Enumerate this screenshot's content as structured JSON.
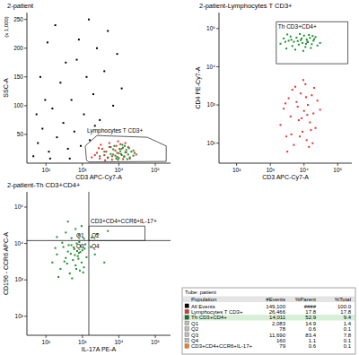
{
  "chart_data": [
    {
      "type": "scatter",
      "title": "2-patient",
      "x_label": "CD3 APC-Cy7-A",
      "y_label": "SSC-A",
      "annotations": [
        "(x 1,000)"
      ],
      "log": "x",
      "xlim": [
        30,
        262144
      ],
      "ylim": [
        0,
        262
      ],
      "xticks": [
        {
          "value": 100,
          "label": "10²"
        },
        {
          "value": 1000,
          "label": "10³"
        },
        {
          "value": 10000,
          "label": "10⁴"
        },
        {
          "value": 100000,
          "label": "10⁵"
        }
      ],
      "yticks": [
        50,
        100,
        150,
        200,
        250
      ],
      "series": [
        {
          "color": "#000000",
          "x": [
            45,
            60,
            80,
            120,
            150,
            200,
            250,
            300,
            400,
            500,
            600,
            700,
            900,
            1100,
            1300,
            1600,
            2000,
            2500,
            3000,
            4000,
            5000,
            7000,
            9000,
            12000,
            70,
            110,
            180,
            350,
            800,
            1500,
            55,
            95,
            2200,
            130,
            450
          ],
          "values": [
            12,
            35,
            60,
            20,
            95,
            45,
            140,
            70,
            25,
            110,
            55,
            180,
            30,
            85,
            150,
            40,
            120,
            200,
            75,
            160,
            230,
            100,
            190,
            130,
            150,
            210,
            240,
            175,
            215,
            250,
            85,
            110,
            65,
            8,
            8
          ]
        },
        {
          "color": "#e8332a",
          "x": [
            1800,
            2500,
            3000,
            3500,
            4000,
            4500,
            5000,
            6000,
            7000,
            8000,
            9000,
            10000,
            12000,
            14000,
            16000,
            20000,
            25000,
            3200,
            5500,
            11000,
            2200,
            6500,
            8500,
            13000,
            18000,
            30000,
            4200,
            9500,
            2800,
            15000
          ],
          "values": [
            10,
            18,
            8,
            25,
            14,
            20,
            9,
            28,
            15,
            22,
            11,
            17,
            25,
            12,
            19,
            8,
            22,
            32,
            35,
            33,
            14,
            6,
            30,
            7,
            28,
            15,
            5,
            38,
            26,
            35
          ]
        },
        {
          "color": "#1f8f2f",
          "x": [
            3000,
            4000,
            5000,
            6000,
            7000,
            8000,
            9000,
            10000,
            11000,
            12000,
            13000,
            14000,
            15000,
            16000,
            18000,
            20000,
            22000,
            25000,
            7500,
            9500,
            12500,
            17000,
            5500,
            10500,
            19000,
            27000,
            8500,
            14500,
            6500,
            11500
          ],
          "values": [
            12,
            20,
            10,
            16,
            24,
            13,
            18,
            9,
            21,
            14,
            27,
            11,
            19,
            23,
            15,
            10,
            20,
            13,
            30,
            6,
            32,
            7,
            28,
            25,
            26,
            18,
            8,
            30,
            12,
            16
          ]
        }
      ],
      "gates": [
        {
          "label": "Lymphocytes T CD3+",
          "points": [
            [
              1300,
              5
            ],
            [
              1200,
              30
            ],
            [
              2500,
              48
            ],
            [
              60000,
              45
            ],
            [
              200000,
              30
            ],
            [
              200000,
              3
            ],
            [
              1500,
              2
            ]
          ]
        }
      ]
    },
    {
      "type": "scatter",
      "title": "2-patient-Lymphocytes T CD3+",
      "x_label": "CD3 APC-Cy7-A",
      "y_label": "CD4 PE-Cy7-A",
      "log": true,
      "xlim": [
        30,
        262144
      ],
      "ylim": [
        30,
        262144
      ],
      "xticks": [
        {
          "value": 100,
          "label": "10²"
        },
        {
          "value": 1000,
          "label": "10³"
        },
        {
          "value": 10000,
          "label": "10⁴"
        },
        {
          "value": 100000,
          "label": "10⁵"
        }
      ],
      "yticks": [
        {
          "value": 100,
          "label": "10²"
        },
        {
          "value": 1000,
          "label": "10³"
        },
        {
          "value": 10000,
          "label": "10⁴"
        },
        {
          "value": 100000,
          "label": "10⁵"
        }
      ],
      "series": [
        {
          "color": "#e8332a",
          "x": [
            2000,
            2500,
            3000,
            3500,
            4000,
            4500,
            5000,
            6000,
            7000,
            8000,
            9000,
            10000,
            11000,
            12000,
            13000,
            15000,
            17000,
            19000,
            22000,
            25000,
            3200,
            5500,
            7500,
            9500,
            14000,
            6500,
            8500,
            11500,
            16000,
            20000,
            2800,
            4200,
            12500,
            18000,
            30000
          ],
          "values": [
            300,
            800,
            150,
            1500,
            500,
            2500,
            90,
            1200,
            400,
            2000,
            200,
            700,
            3500,
            120,
            1000,
            350,
            1800,
            600,
            250,
            1300,
            60,
            3000,
            150,
            4500,
            80,
            900,
            450,
            1600,
            220,
            2800,
            1100,
            170,
            550,
            100,
            750
          ]
        },
        {
          "color": "#1f8f2f",
          "x": [
            2000,
            2500,
            3000,
            3500,
            4000,
            4500,
            5000,
            6000,
            7000,
            8000,
            9000,
            10000,
            11000,
            12000,
            13000,
            15000,
            17000,
            19000,
            22000,
            25000,
            3200,
            5500,
            7500,
            9500,
            14000,
            6500,
            8500,
            11500,
            16000,
            20000,
            2800,
            4200,
            12500,
            18000,
            30000
          ],
          "values": [
            40000,
            55000,
            30000,
            48000,
            62000,
            35000,
            45000,
            58000,
            38000,
            50000,
            42000,
            65000,
            33000,
            52000,
            44000,
            57000,
            39000,
            48000,
            60000,
            36000,
            70000,
            28000,
            72000,
            26000,
            68000,
            47000,
            55000,
            40000,
            31000,
            53000,
            45000,
            51000,
            46000,
            64000,
            42000
          ]
        }
      ],
      "gates": [
        {
          "label": "Th CD3+CD4+",
          "points": [
            [
              1500,
              12000
            ],
            [
              1500,
              150000
            ],
            [
              200000,
              150000
            ],
            [
              200000,
              12000
            ]
          ]
        }
      ]
    },
    {
      "type": "scatter",
      "title": "2-patient-Th CD3+CD4+",
      "x_label": "IL-17A PE-A",
      "y_label": "CD196 - CCR6 APC-A",
      "log": true,
      "xlim": [
        30,
        262144
      ],
      "ylim": [
        30,
        262144
      ],
      "xticks": [
        {
          "value": 100,
          "label": "10²"
        },
        {
          "value": 1000,
          "label": "10³"
        },
        {
          "value": 10000,
          "label": "10⁴"
        },
        {
          "value": 100000,
          "label": "10⁵"
        }
      ],
      "yticks": [
        {
          "value": 100,
          "label": "10²"
        },
        {
          "value": 1000,
          "label": "10³"
        },
        {
          "value": 10000,
          "label": "10⁴"
        },
        {
          "value": 100000,
          "label": "10⁵"
        }
      ],
      "series": [
        {
          "color": "#1f8f2f",
          "x": [
            150,
            200,
            250,
            300,
            350,
            400,
            450,
            500,
            550,
            600,
            650,
            700,
            750,
            800,
            850,
            900,
            950,
            1000,
            1100,
            1200,
            1300,
            180,
            220,
            280,
            320,
            380,
            420,
            480,
            520,
            580,
            620,
            680,
            720,
            780,
            820,
            880,
            1050,
            1150,
            200,
            350,
            500,
            650,
            800,
            950,
            1100,
            400,
            2500,
            5000,
            1800,
            2200,
            4000,
            1700
          ],
          "values": [
            3000,
            5000,
            2000,
            8000,
            4000,
            6000,
            1500,
            9000,
            3500,
            7000,
            2500,
            10000,
            4500,
            5500,
            1800,
            8500,
            3000,
            6500,
            2200,
            9500,
            4200,
            7500,
            1200,
            10500,
            3200,
            2800,
            9000,
            5200,
            1100,
            7800,
            4800,
            2000,
            6200,
            3800,
            11000,
            5800,
            1600,
            7200,
            15000,
            20000,
            14000,
            25000,
            17000,
            30000,
            13500,
            40000,
            18000,
            22000,
            14500,
            5000,
            3000,
            8000
          ]
        }
      ],
      "quadrant": {
        "x": 1500,
        "y": 12000,
        "labels": [
          "Q1",
          "Q2",
          "Q3",
          "Q4"
        ]
      },
      "gates": [
        {
          "label": "CD3+CD4+CCR6+IL-17+",
          "points": [
            [
              1500,
              12000
            ],
            [
              1500,
              30000
            ],
            [
              52000,
              30000
            ],
            [
              52000,
              12000
            ]
          ]
        }
      ]
    }
  ],
  "table": {
    "title": "Tube: patient",
    "columns": [
      "Population",
      "#Events",
      "%Parent",
      "%Total"
    ],
    "rows": [
      {
        "population": "All Events",
        "events": "149,100",
        "pct_parent": "####",
        "pct_total": "100.0",
        "color": "#000000"
      },
      {
        "population": "Lymphocytes T CD3+",
        "events": "26,466",
        "pct_parent": "17.8",
        "pct_total": "17.8",
        "color": "#e8332a"
      },
      {
        "population": "Th CD3+CD4+",
        "events": "14,011",
        "pct_parent": "52.9",
        "pct_total": "9.4",
        "color": "#1f6f2f",
        "selected": true
      },
      {
        "population": "Q1",
        "events": "2,083",
        "pct_parent": "14.9",
        "pct_total": "1.4",
        "color": "#bfbfbf"
      },
      {
        "population": "Q2",
        "events": "78",
        "pct_parent": "0.6",
        "pct_total": "0.1",
        "color": "#bfbfbf"
      },
      {
        "population": "Q3",
        "events": "11,690",
        "pct_parent": "83.4",
        "pct_total": "7.8",
        "color": "#bfbfbf"
      },
      {
        "population": "Q4",
        "events": "160",
        "pct_parent": "1.1",
        "pct_total": "0.1",
        "color": "#bfbfbf"
      },
      {
        "population": "CD3+CD4+CCR6+IL-17+",
        "events": "79",
        "pct_parent": "0.6",
        "pct_total": "0.1",
        "color": "#f07f1f"
      }
    ]
  }
}
